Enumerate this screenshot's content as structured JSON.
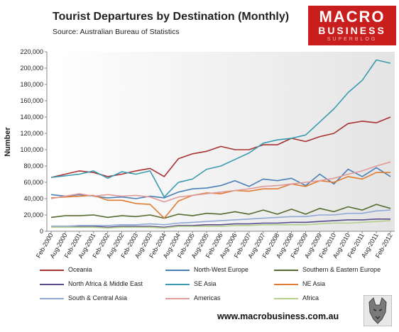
{
  "title": "Tourist Departures by Destination (Monthly)",
  "subtitle": "Source: Australian Bureau of Statistics",
  "logo": {
    "line1": "MACRO",
    "line2": "BUSINESS",
    "line3": "SUPERBLOG"
  },
  "website": "www.macrobusiness.com.au",
  "chart_data": {
    "type": "line",
    "ylabel": "Number",
    "xlabel": "",
    "ylim": [
      0,
      220000
    ],
    "yticks": [
      "0",
      "20,000",
      "40,000",
      "60,000",
      "80,000",
      "100,000",
      "120,000",
      "140,000",
      "160,000",
      "180,000",
      "200,000",
      "220,000"
    ],
    "xticks": [
      "Feb-2000",
      "Aug-2000",
      "Feb-2001",
      "Aug-2001",
      "Feb-2002",
      "Aug-2002",
      "Feb-2003",
      "Aug-2003",
      "Feb-2004",
      "Aug-2004",
      "Feb-2005",
      "Aug-2005",
      "Feb-2006",
      "Aug-2006",
      "Feb-2007",
      "Aug-2007",
      "Feb-2008",
      "Aug-2008",
      "Feb-2009",
      "Aug-2009",
      "Feb-2010",
      "Aug-2010",
      "Feb-2011",
      "Aug-2011",
      "Feb-2012"
    ],
    "grid": false,
    "legend_position": "bottom",
    "series": [
      {
        "name": "Oceania",
        "color": "#a83232",
        "values": [
          66000,
          70000,
          74000,
          72000,
          67000,
          70000,
          74000,
          77000,
          67000,
          89000,
          95000,
          98000,
          104000,
          100000,
          100000,
          106000,
          106000,
          114000,
          110000,
          116000,
          120000,
          132000,
          135000,
          133000,
          140000
        ]
      },
      {
        "name": "North-West Europe",
        "color": "#4a7fb8",
        "values": [
          45000,
          43000,
          45000,
          43000,
          41000,
          42000,
          40000,
          43000,
          41000,
          48000,
          52000,
          53000,
          56000,
          62000,
          55000,
          64000,
          62000,
          65000,
          56000,
          70000,
          58000,
          76000,
          67000,
          78000,
          67000
        ]
      },
      {
        "name": "Southern & Eastern Europe",
        "color": "#556b2f",
        "values": [
          17000,
          19000,
          19000,
          20000,
          17000,
          19000,
          18000,
          20000,
          16000,
          21000,
          19000,
          22000,
          21000,
          24000,
          21000,
          26000,
          21000,
          27000,
          21000,
          28000,
          24000,
          30000,
          26000,
          33000,
          28000
        ]
      },
      {
        "name": "North Africa & Middle East",
        "color": "#5a4a8a",
        "values": [
          6000,
          6000,
          6000,
          6000,
          5000,
          6000,
          6000,
          6000,
          5000,
          7000,
          7000,
          8000,
          8000,
          9000,
          9000,
          10000,
          10000,
          11000,
          11000,
          12000,
          13000,
          14000,
          14000,
          15000,
          15000
        ]
      },
      {
        "name": "SE Asia",
        "color": "#3a9ab0",
        "values": [
          66000,
          68000,
          70000,
          74000,
          65000,
          73000,
          70000,
          74000,
          42000,
          60000,
          64000,
          76000,
          80000,
          88000,
          96000,
          108000,
          112000,
          114000,
          118000,
          134000,
          150000,
          170000,
          185000,
          210000,
          206000
        ]
      },
      {
        "name": "NE Asia",
        "color": "#e07b30",
        "values": [
          41000,
          42000,
          43000,
          44000,
          38000,
          38000,
          34000,
          33000,
          16000,
          37000,
          44000,
          47000,
          46000,
          50000,
          49000,
          52000,
          52000,
          58000,
          55000,
          62000,
          60000,
          67000,
          64000,
          72000,
          72000
        ]
      },
      {
        "name": "South & Central Asia",
        "color": "#8fa8d6",
        "values": [
          6000,
          6000,
          7000,
          7000,
          7000,
          8000,
          8000,
          9000,
          8000,
          10000,
          11000,
          12000,
          13000,
          14000,
          15000,
          16000,
          17000,
          18000,
          18000,
          20000,
          20000,
          22000,
          22000,
          25000,
          26000
        ]
      },
      {
        "name": "Americas",
        "color": "#e09a9a",
        "values": [
          40000,
          43000,
          46000,
          43000,
          45000,
          43000,
          44000,
          42000,
          36000,
          42000,
          44000,
          46000,
          48000,
          50000,
          52000,
          55000,
          56000,
          58000,
          60000,
          62000,
          65000,
          70000,
          74000,
          80000,
          85000
        ]
      },
      {
        "name": "Africa",
        "color": "#b5d08a",
        "values": [
          5000,
          5000,
          5000,
          5000,
          4000,
          5000,
          5000,
          5000,
          4000,
          6000,
          6000,
          6000,
          6000,
          7000,
          7000,
          8000,
          8000,
          8000,
          8000,
          9000,
          10000,
          10000,
          11000,
          12000,
          13000
        ]
      }
    ]
  }
}
